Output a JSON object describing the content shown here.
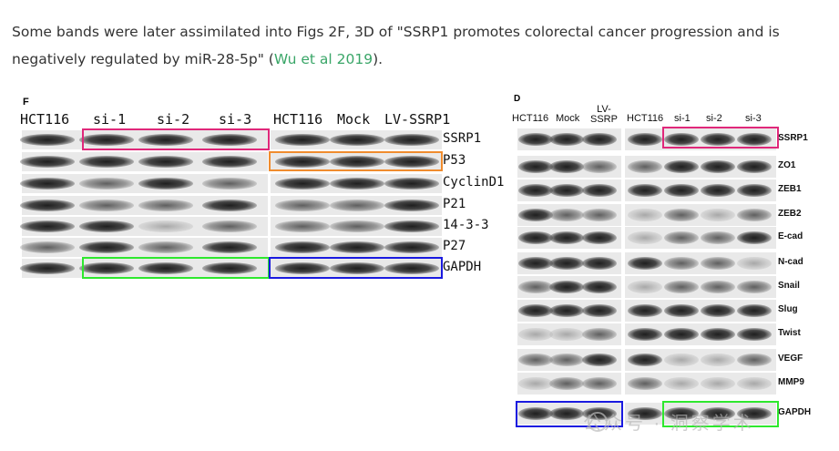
{
  "caption": {
    "text_before_link": "Some bands were later assimilated into Figs 2F, 3D of \"SSRP1 promotes colorectal cancer progression and is negatively regulated by miR-28-5p\" (",
    "link_text": "Wu et al 2019",
    "text_after_link": ")."
  },
  "panel_f": {
    "letter": "F",
    "left_lanes": [
      "HCT116",
      "si-1",
      "si-2",
      "si-3"
    ],
    "right_lanes": [
      "HCT116",
      "Mock",
      "LV-SSRP1"
    ],
    "rows": [
      "SSRP1",
      "P53",
      "CyclinD1",
      "P21",
      "14-3-3",
      "P27",
      "GAPDH"
    ]
  },
  "panel_d": {
    "letter": "D",
    "left_lanes": [
      "HCT116",
      "Mock",
      "LV-\nSSRP"
    ],
    "right_lanes": [
      "HCT116",
      "si-1",
      "si-2",
      "si-3"
    ],
    "rows": [
      "SSRP1",
      "ZO1",
      "ZEB1",
      "ZEB2",
      "E-cad",
      "N-cad",
      "Snail",
      "Slug",
      "Twist",
      "VEGF",
      "MMP9",
      "GAPDH"
    ]
  },
  "watermark": "公众号 · 洞察学术",
  "colors": {
    "magenta_box": "#e0287a",
    "orange_box": "#f08c2e",
    "green_box": "#2ee82e",
    "blue_box": "#1a1ae0",
    "link": "#3aa668"
  }
}
